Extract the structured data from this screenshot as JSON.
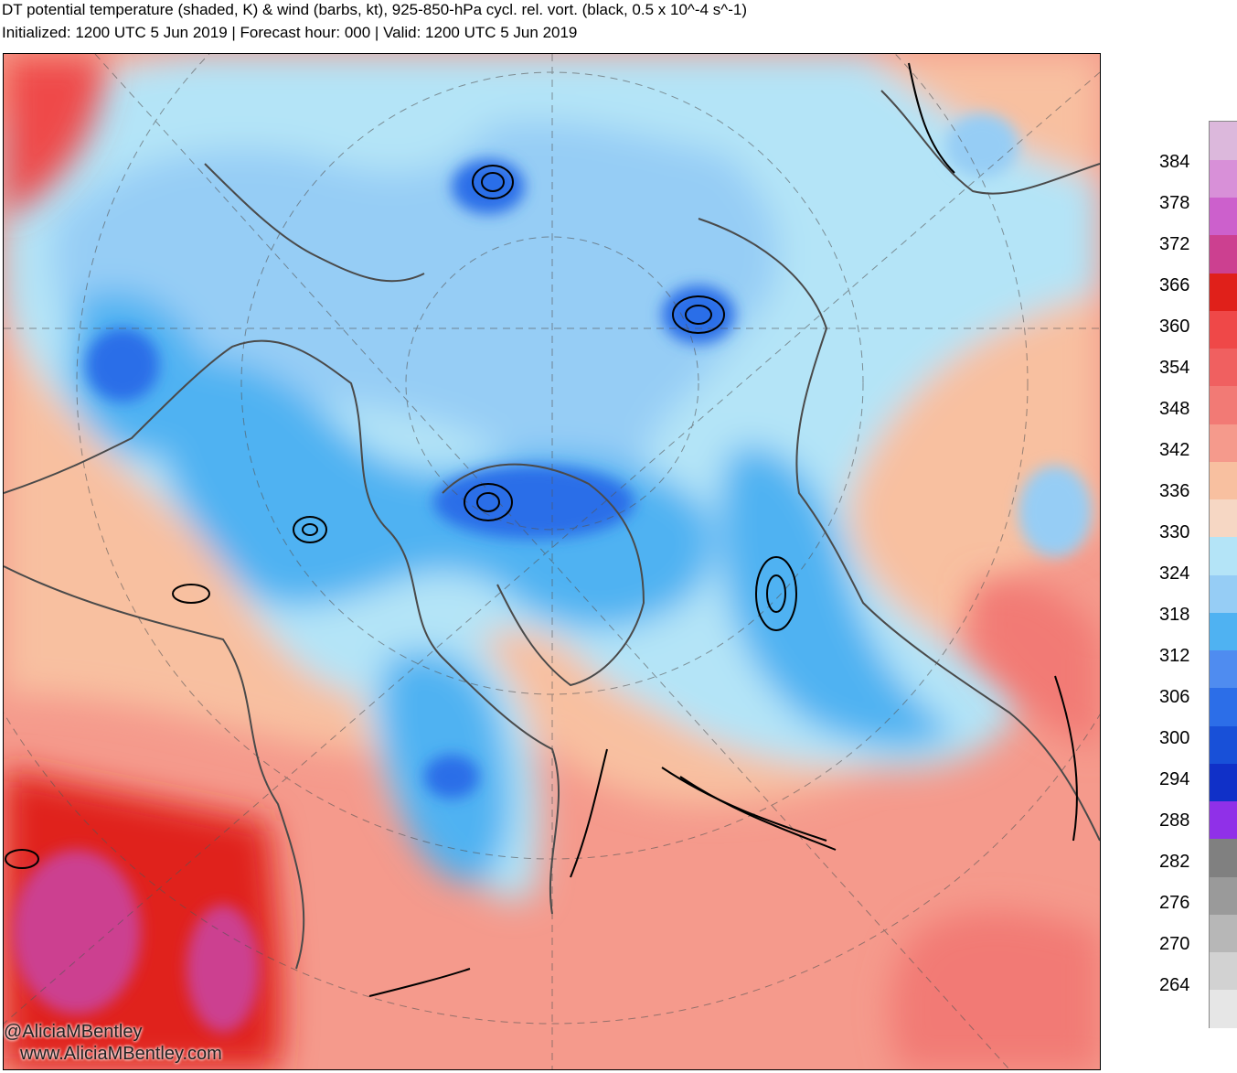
{
  "header": {
    "title": "DT potential temperature (shaded, K) & wind (barbs, kt), 925-850-hPa cycl. rel. vort. (black, 0.5 x 10^-4 s^-1)",
    "subtitle": "Initialized: 1200 UTC 5 Jun 2019 | Forecast hour: 000 | Valid: 1200 UTC 5 Jun 2019"
  },
  "colorbar": {
    "ticks": [
      "384",
      "378",
      "372",
      "366",
      "360",
      "354",
      "348",
      "342",
      "336",
      "330",
      "324",
      "318",
      "312",
      "306",
      "300",
      "294",
      "288",
      "282",
      "276",
      "270",
      "264"
    ],
    "colors": [
      "#e6e6e6",
      "#d2d2d2",
      "#b7b7b7",
      "#9a9a9a",
      "#808080",
      "#9030e8",
      "#1030c8",
      "#1850d8",
      "#2c6ee8",
      "#4f8cf0",
      "#4fb2f2",
      "#96cdf5",
      "#b4e4f7",
      "#f6d7c4",
      "#f8c0a0",
      "#f59a8c",
      "#f27a75",
      "#f06060",
      "#ef4848",
      "#e0201a",
      "#cc4090",
      "#cc60cc",
      "#d890d8",
      "#dcb8dc"
    ],
    "range": [
      258,
      390
    ],
    "step": 6
  },
  "credits": {
    "handle": "@AliciaMBentley",
    "website": "www.AliciaMBentley.com"
  }
}
